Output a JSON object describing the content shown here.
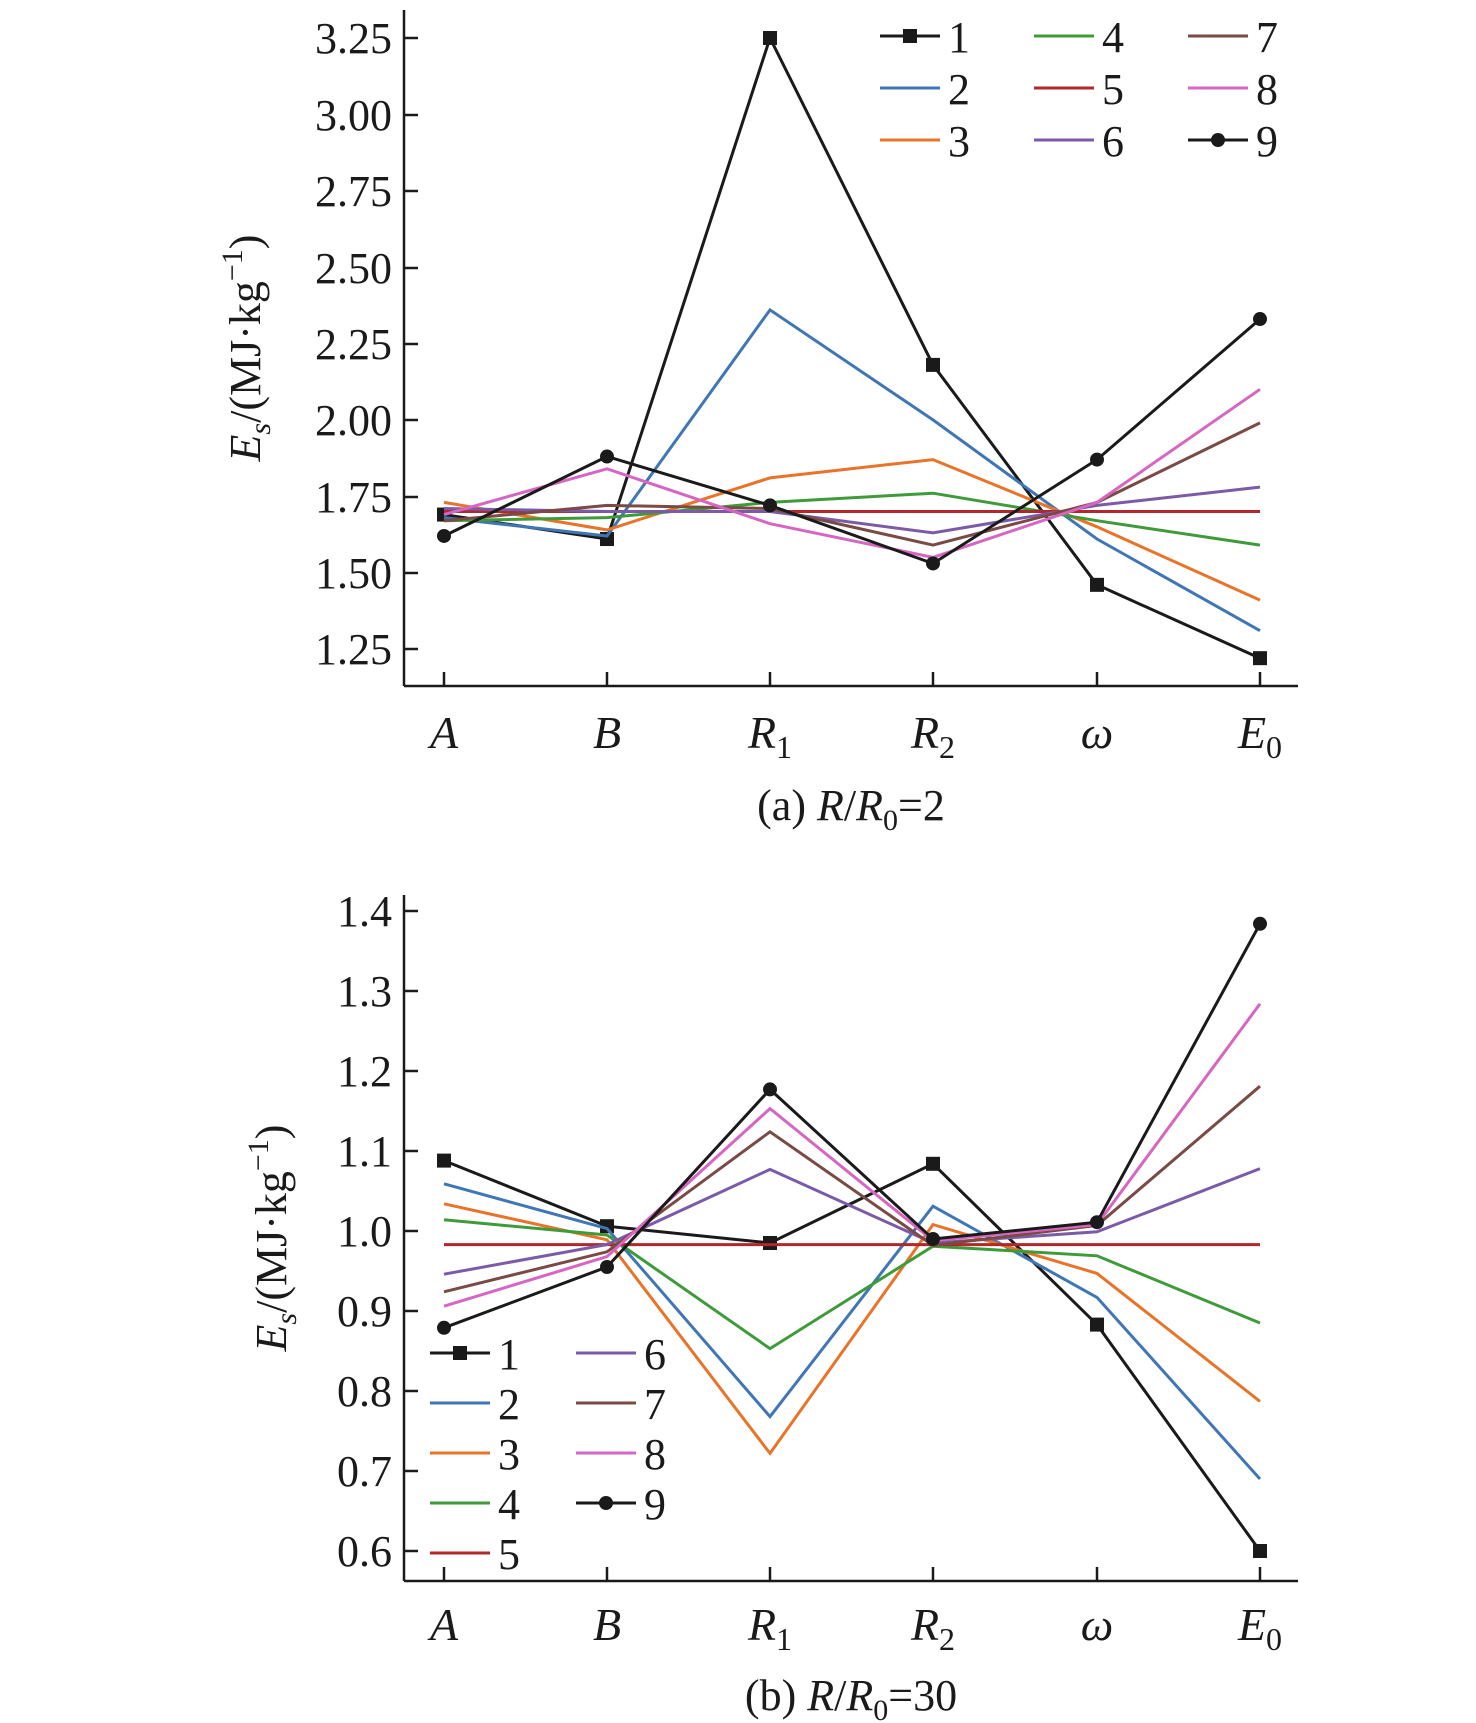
{
  "chart_data": [
    {
      "type": "line",
      "caption": {
        "prefix": "(a) ",
        "var": "R",
        "mid": "/",
        "var2": "R",
        "sub": "0",
        "rest": "=2"
      },
      "ylabel": {
        "main": "E",
        "sub": "s",
        "rest": "/(MJ·kg",
        "sup": "−1",
        "close": ")"
      },
      "categories": [
        {
          "main": "A",
          "sub": ""
        },
        {
          "main": "B",
          "sub": ""
        },
        {
          "main": "R",
          "sub": "1"
        },
        {
          "main": "R",
          "sub": "2"
        },
        {
          "main": "ω",
          "sub": ""
        },
        {
          "main": "E",
          "sub": "0"
        }
      ],
      "yticks": [
        "1.25",
        "1.50",
        "1.75",
        "2.00",
        "2.25",
        "2.50",
        "2.75",
        "3.00",
        "3.25"
      ],
      "ylim": [
        1.12,
        3.35
      ],
      "legend": {
        "position": "top-right",
        "columns": 3
      },
      "series": [
        {
          "name": "1",
          "color": "#1a1a1a",
          "marker": "square",
          "values": [
            1.69,
            1.61,
            3.25,
            2.18,
            1.46,
            1.22
          ]
        },
        {
          "name": "2",
          "color": "#3f76b4",
          "marker": "none",
          "values": [
            1.68,
            1.62,
            2.36,
            2.0,
            1.61,
            1.31
          ]
        },
        {
          "name": "3",
          "color": "#e8742a",
          "marker": "none",
          "values": [
            1.73,
            1.64,
            1.81,
            1.87,
            1.65,
            1.41
          ]
        },
        {
          "name": "4",
          "color": "#3f9b3a",
          "marker": "none",
          "values": [
            1.67,
            1.68,
            1.73,
            1.76,
            1.67,
            1.59
          ]
        },
        {
          "name": "5",
          "color": "#b1272b",
          "marker": "none",
          "values": [
            1.7,
            1.7,
            1.7,
            1.7,
            1.7,
            1.7
          ]
        },
        {
          "name": "6",
          "color": "#7b5ba7",
          "marker": "none",
          "values": [
            1.71,
            1.7,
            1.7,
            1.63,
            1.72,
            1.78
          ]
        },
        {
          "name": "7",
          "color": "#7a4a44",
          "marker": "none",
          "values": [
            1.67,
            1.72,
            1.71,
            1.59,
            1.73,
            1.99
          ]
        },
        {
          "name": "8",
          "color": "#d666c2",
          "marker": "none",
          "values": [
            1.69,
            1.84,
            1.66,
            1.55,
            1.73,
            2.1
          ]
        },
        {
          "name": "9",
          "color": "#1a1a1a",
          "marker": "circle",
          "values": [
            1.62,
            1.88,
            1.72,
            1.53,
            1.87,
            2.33
          ]
        }
      ]
    },
    {
      "type": "line",
      "caption": {
        "prefix": "(b) ",
        "var": "R",
        "mid": "/",
        "var2": "R",
        "sub": "0",
        "rest": "=30"
      },
      "ylabel": {
        "main": "E",
        "sub": "s",
        "rest": "/(MJ·kg",
        "sup": "−1",
        "close": ")"
      },
      "categories": [
        {
          "main": "A",
          "sub": ""
        },
        {
          "main": "B",
          "sub": ""
        },
        {
          "main": "R",
          "sub": "1"
        },
        {
          "main": "R",
          "sub": "2"
        },
        {
          "main": "ω",
          "sub": ""
        },
        {
          "main": "E",
          "sub": "0"
        }
      ],
      "yticks": [
        "0.6",
        "0.7",
        "0.8",
        "0.9",
        "1.0",
        "1.1",
        "1.2",
        "1.3",
        "1.4"
      ],
      "ylim": [
        0.56,
        1.43
      ],
      "legend": {
        "position": "bottom-left",
        "columns": 2
      },
      "series": [
        {
          "name": "1",
          "color": "#1a1a1a",
          "marker": "square",
          "values": [
            1.088,
            1.006,
            0.985,
            1.084,
            0.883,
            0.6
          ]
        },
        {
          "name": "2",
          "color": "#3f76b4",
          "marker": "none",
          "values": [
            1.059,
            1.003,
            0.768,
            1.031,
            0.917,
            0.69
          ]
        },
        {
          "name": "3",
          "color": "#e8742a",
          "marker": "none",
          "values": [
            1.034,
            0.989,
            0.722,
            1.008,
            0.947,
            0.787
          ]
        },
        {
          "name": "4",
          "color": "#3f9b3a",
          "marker": "none",
          "values": [
            1.014,
            0.995,
            0.853,
            0.981,
            0.969,
            0.885
          ]
        },
        {
          "name": "5",
          "color": "#b1272b",
          "marker": "none",
          "values": [
            0.983,
            0.983,
            0.983,
            0.983,
            0.983,
            0.983
          ]
        },
        {
          "name": "6",
          "color": "#7b5ba7",
          "marker": "none",
          "values": [
            0.946,
            0.983,
            1.077,
            0.985,
            0.999,
            1.078
          ]
        },
        {
          "name": "7",
          "color": "#7a4a44",
          "marker": "none",
          "values": [
            0.924,
            0.974,
            1.124,
            0.982,
            1.007,
            1.181
          ]
        },
        {
          "name": "8",
          "color": "#d666c2",
          "marker": "none",
          "values": [
            0.906,
            0.968,
            1.153,
            0.988,
            1.008,
            1.284
          ]
        },
        {
          "name": "9",
          "color": "#1a1a1a",
          "marker": "circle",
          "values": [
            0.879,
            0.955,
            1.177,
            0.99,
            1.011,
            1.384
          ]
        }
      ]
    }
  ]
}
